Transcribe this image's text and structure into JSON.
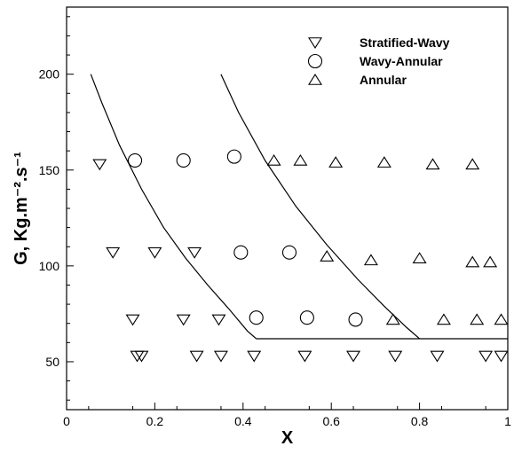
{
  "chart_data": {
    "type": "scatter",
    "title": "",
    "xlabel": "X",
    "ylabel": "G, Kg.m⁻².s⁻¹",
    "xlim": [
      0,
      1
    ],
    "ylim": [
      25,
      235
    ],
    "x_ticks": [
      0,
      0.2,
      0.4,
      0.6,
      0.8,
      1
    ],
    "x_tick_labels": [
      "0",
      "0.2",
      "0.4",
      "0.6",
      "0.8",
      "1"
    ],
    "y_ticks": [
      50,
      100,
      150,
      200
    ],
    "y_tick_labels": [
      "50",
      "100",
      "150",
      "200"
    ],
    "grid": false,
    "legend_position": "top-right",
    "series": [
      {
        "name": "Stratified-Wavy",
        "marker": "triangle-down",
        "points": [
          [
            0.075,
            153
          ],
          [
            0.16,
            53
          ],
          [
            0.105,
            107
          ],
          [
            0.2,
            107
          ],
          [
            0.29,
            107
          ],
          [
            0.15,
            72
          ],
          [
            0.265,
            72
          ],
          [
            0.345,
            72
          ],
          [
            0.17,
            53
          ],
          [
            0.295,
            53
          ],
          [
            0.35,
            53
          ],
          [
            0.425,
            53
          ],
          [
            0.54,
            53
          ],
          [
            0.65,
            53
          ],
          [
            0.745,
            53
          ],
          [
            0.84,
            53
          ],
          [
            0.95,
            53
          ],
          [
            0.985,
            53
          ]
        ]
      },
      {
        "name": "Wavy-Annular",
        "marker": "circle",
        "points": [
          [
            0.155,
            155
          ],
          [
            0.265,
            155
          ],
          [
            0.38,
            157
          ],
          [
            0.395,
            107
          ],
          [
            0.505,
            107
          ],
          [
            0.43,
            73
          ],
          [
            0.545,
            73
          ],
          [
            0.655,
            72
          ]
        ]
      },
      {
        "name": "Annular",
        "marker": "triangle-up",
        "points": [
          [
            0.47,
            155
          ],
          [
            0.53,
            155
          ],
          [
            0.61,
            154
          ],
          [
            0.72,
            154
          ],
          [
            0.83,
            153
          ],
          [
            0.92,
            153
          ],
          [
            0.59,
            105
          ],
          [
            0.69,
            103
          ],
          [
            0.8,
            104
          ],
          [
            0.92,
            102
          ],
          [
            0.96,
            102
          ],
          [
            0.74,
            72
          ],
          [
            0.855,
            72
          ],
          [
            0.93,
            72
          ],
          [
            0.985,
            72
          ]
        ]
      }
    ],
    "boundary_curves": [
      {
        "points": [
          [
            0.055,
            200
          ],
          [
            0.08,
            185
          ],
          [
            0.12,
            163
          ],
          [
            0.17,
            140
          ],
          [
            0.22,
            120
          ],
          [
            0.27,
            104
          ],
          [
            0.32,
            90
          ],
          [
            0.37,
            77
          ],
          [
            0.41,
            66
          ],
          [
            0.43,
            62
          ]
        ]
      },
      {
        "points": [
          [
            0.35,
            200
          ],
          [
            0.39,
            180
          ],
          [
            0.45,
            155
          ],
          [
            0.52,
            131
          ],
          [
            0.59,
            111
          ],
          [
            0.66,
            93
          ],
          [
            0.72,
            79
          ],
          [
            0.77,
            68
          ],
          [
            0.8,
            62
          ]
        ]
      },
      {
        "points": [
          [
            0.43,
            62
          ],
          [
            1.0,
            62
          ]
        ]
      }
    ]
  }
}
